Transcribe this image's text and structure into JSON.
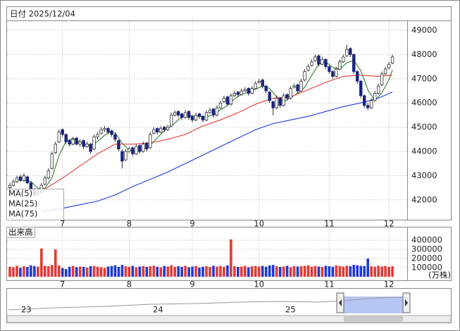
{
  "chart_data": [
    {
      "type": "candlestick",
      "title": "日付 2025/12/04",
      "ohlc": [
        [
          42500,
          42700,
          42400,
          42600
        ],
        [
          42600,
          42850,
          42550,
          42750
        ],
        [
          42750,
          43000,
          42700,
          42900
        ],
        [
          42950,
          43050,
          42750,
          42800
        ],
        [
          42800,
          43100,
          42750,
          43000
        ],
        [
          42950,
          43000,
          42650,
          42700
        ],
        [
          42700,
          42750,
          42300,
          42400
        ],
        [
          42450,
          42500,
          42100,
          42200
        ],
        [
          42200,
          42400,
          42150,
          42300
        ],
        [
          42300,
          42700,
          42250,
          42600
        ],
        [
          42650,
          43000,
          42600,
          42900
        ],
        [
          42900,
          43300,
          42850,
          43200
        ],
        [
          43300,
          44000,
          43250,
          43900
        ],
        [
          43950,
          44400,
          43900,
          44300
        ],
        [
          44400,
          44900,
          44350,
          44800
        ],
        [
          44900,
          44950,
          44600,
          44700
        ],
        [
          44700,
          44750,
          44300,
          44400
        ],
        [
          44450,
          44500,
          44200,
          44300
        ],
        [
          44300,
          44600,
          44250,
          44500
        ],
        [
          44550,
          44600,
          44250,
          44300
        ],
        [
          44300,
          44500,
          44200,
          44400
        ],
        [
          44450,
          44500,
          44100,
          44200
        ],
        [
          44200,
          44400,
          44150,
          44300
        ],
        [
          44300,
          44350,
          43900,
          44000
        ],
        [
          44100,
          44700,
          44050,
          44600
        ],
        [
          44600,
          44800,
          44500,
          44700
        ],
        [
          44750,
          45000,
          44700,
          44900
        ],
        [
          44900,
          45050,
          44800,
          44950
        ],
        [
          44950,
          45000,
          44700,
          44800
        ],
        [
          44850,
          44900,
          44600,
          44700
        ],
        [
          44700,
          44750,
          44400,
          44500
        ],
        [
          44450,
          44500,
          44000,
          44100
        ],
        [
          44000,
          44100,
          43300,
          43600
        ],
        [
          43650,
          44100,
          43600,
          44000
        ],
        [
          44000,
          44200,
          43950,
          44100
        ],
        [
          44150,
          44200,
          43800,
          43900
        ],
        [
          43900,
          44300,
          43850,
          44200
        ],
        [
          44250,
          44300,
          43900,
          44000
        ],
        [
          44000,
          44400,
          43950,
          44300
        ],
        [
          44350,
          44400,
          44000,
          44100
        ],
        [
          44150,
          44800,
          44100,
          44700
        ],
        [
          44750,
          45000,
          44700,
          44900
        ],
        [
          44950,
          45000,
          44700,
          44800
        ],
        [
          44800,
          45050,
          44750,
          44950
        ],
        [
          45000,
          45050,
          44800,
          44900
        ],
        [
          44900,
          45100,
          44850,
          45000
        ],
        [
          45050,
          45600,
          45000,
          45500
        ],
        [
          45500,
          45700,
          45450,
          45600
        ],
        [
          45650,
          45700,
          45400,
          45500
        ],
        [
          45550,
          45600,
          45300,
          45400
        ],
        [
          45400,
          45700,
          45350,
          45600
        ],
        [
          45650,
          45700,
          45300,
          45400
        ],
        [
          45450,
          45500,
          45200,
          45300
        ],
        [
          45300,
          45600,
          45250,
          45500
        ],
        [
          45550,
          45600,
          45350,
          45450
        ],
        [
          45450,
          45500,
          45200,
          45300
        ],
        [
          45300,
          45700,
          45250,
          45600
        ],
        [
          45600,
          45800,
          45550,
          45700
        ],
        [
          45750,
          45800,
          45400,
          45500
        ],
        [
          45500,
          45900,
          45450,
          45800
        ],
        [
          45800,
          46100,
          45750,
          46000
        ],
        [
          46050,
          46300,
          46000,
          46200
        ],
        [
          46250,
          46300,
          45900,
          45950
        ],
        [
          45950,
          46400,
          45900,
          46300
        ],
        [
          46300,
          46500,
          46250,
          46400
        ],
        [
          46450,
          46500,
          46250,
          46350
        ],
        [
          46350,
          46600,
          46300,
          46500
        ],
        [
          46500,
          46650,
          46450,
          46550
        ],
        [
          46600,
          46650,
          46300,
          46400
        ],
        [
          46400,
          46700,
          46350,
          46600
        ],
        [
          46600,
          46900,
          46550,
          46800
        ],
        [
          46850,
          47000,
          46800,
          46900
        ],
        [
          46950,
          47000,
          46600,
          46700
        ],
        [
          46700,
          46750,
          46400,
          46500
        ],
        [
          46450,
          46500,
          46000,
          46100
        ],
        [
          46050,
          46100,
          45500,
          45800
        ],
        [
          45800,
          46300,
          45750,
          46200
        ],
        [
          46200,
          46250,
          45800,
          45900
        ],
        [
          45900,
          46400,
          45850,
          46300
        ],
        [
          46350,
          46400,
          46100,
          46200
        ],
        [
          46200,
          46700,
          46150,
          46600
        ],
        [
          46650,
          46800,
          46600,
          46700
        ],
        [
          46750,
          46800,
          46400,
          46500
        ],
        [
          46500,
          47000,
          46450,
          46900
        ],
        [
          46950,
          47400,
          46900,
          47300
        ],
        [
          47350,
          47600,
          47300,
          47500
        ],
        [
          47550,
          47800,
          47500,
          47700
        ],
        [
          47750,
          48000,
          47700,
          47900
        ],
        [
          47950,
          48000,
          47500,
          47600
        ],
        [
          47600,
          47900,
          47550,
          47800
        ],
        [
          47800,
          47850,
          47400,
          47500
        ],
        [
          47500,
          47550,
          47200,
          47300
        ],
        [
          47300,
          47350,
          47000,
          47100
        ],
        [
          47100,
          47500,
          47050,
          47400
        ],
        [
          47400,
          47800,
          47350,
          47700
        ],
        [
          47700,
          48000,
          47650,
          47900
        ],
        [
          47950,
          48400,
          47900,
          48200
        ],
        [
          48250,
          48300,
          47900,
          48000
        ],
        [
          48000,
          48050,
          47200,
          47300
        ],
        [
          47300,
          47350,
          46800,
          46900
        ],
        [
          46900,
          46950,
          46200,
          46300
        ],
        [
          46300,
          46350,
          45800,
          45900
        ],
        [
          45900,
          46000,
          45700,
          45800
        ],
        [
          45800,
          46200,
          45750,
          46100
        ],
        [
          46100,
          46500,
          46050,
          46400
        ],
        [
          46400,
          46800,
          46350,
          46700
        ],
        [
          46750,
          47300,
          46700,
          47200
        ],
        [
          47200,
          47500,
          47150,
          47400
        ],
        [
          47450,
          47700,
          47400,
          47600
        ],
        [
          47650,
          48000,
          47600,
          47900
        ]
      ],
      "up_color": "#ffffff",
      "down_color": "#1a237e",
      "series": [
        {
          "name": "MA(5)",
          "color": "#2e7d32",
          "x": [
            4,
            6,
            8,
            10,
            12,
            14,
            16,
            18,
            20,
            22,
            24,
            26,
            28,
            30,
            32,
            34,
            36,
            38,
            40,
            42,
            44,
            46,
            48,
            50,
            52,
            54,
            56,
            58,
            60,
            62,
            64,
            66,
            68,
            70,
            72,
            74,
            76,
            78,
            80,
            82,
            84,
            86,
            88,
            90,
            92,
            94,
            96,
            98,
            100,
            102,
            104,
            106,
            108,
            109
          ],
          "values": [
            42810,
            42760,
            42480,
            42480,
            42920,
            43820,
            44420,
            44540,
            44400,
            44280,
            44300,
            44540,
            44790,
            44770,
            44340,
            44060,
            43960,
            44080,
            44260,
            44560,
            44850,
            45050,
            45300,
            45520,
            45460,
            45450,
            45430,
            45510,
            45720,
            45890,
            46170,
            46360,
            46440,
            46570,
            46700,
            46600,
            46260,
            46060,
            46220,
            46400,
            46640,
            47140,
            47600,
            47700,
            47460,
            47400,
            47660,
            47760,
            47340,
            46540,
            46100,
            46420,
            46960,
            47360
          ]
        },
        {
          "name": "MA(25)",
          "color": "#e53935",
          "x": [
            9,
            15,
            20,
            25,
            30,
            35,
            40,
            45,
            50,
            55,
            60,
            65,
            70,
            75,
            80,
            85,
            90,
            95,
            100,
            105,
            109
          ],
          "values": [
            42350,
            42900,
            43400,
            43900,
            44300,
            44300,
            44350,
            44500,
            44700,
            45050,
            45300,
            45600,
            45950,
            46200,
            46250,
            46550,
            46850,
            47100,
            47150,
            47100,
            47150
          ]
        },
        {
          "name": "MA(75)",
          "color": "#1e3ad6",
          "x": [
            9,
            15,
            20,
            25,
            30,
            35,
            40,
            45,
            50,
            55,
            60,
            65,
            70,
            75,
            80,
            85,
            90,
            95,
            100,
            105,
            109
          ],
          "values": [
            41500,
            41650,
            41800,
            41950,
            42200,
            42550,
            42850,
            43150,
            43500,
            43850,
            44200,
            44550,
            44900,
            45150,
            45300,
            45450,
            45650,
            45850,
            46000,
            46200,
            46450
          ]
        }
      ],
      "xlim": [
        -0.8,
        113.2
      ],
      "xticks": [
        {
          "value": 15,
          "label": "7"
        },
        {
          "value": 34,
          "label": "8"
        },
        {
          "value": 52,
          "label": "9"
        },
        {
          "value": 71,
          "label": "10"
        },
        {
          "value": 91,
          "label": "11"
        },
        {
          "value": 108,
          "label": "12"
        }
      ],
      "ylim": [
        41180,
        49380
      ],
      "yticks": [
        42000,
        43000,
        44000,
        45000,
        46000,
        47000,
        48000,
        49000
      ],
      "grid": true
    },
    {
      "type": "bar",
      "title": "出来高",
      "unit": "(万株)",
      "values": [
        110000,
        105000,
        120000,
        98000,
        115000,
        108000,
        125000,
        118000,
        112000,
        310000,
        120000,
        115000,
        130000,
        300000,
        122000,
        95000,
        85000,
        110000,
        118000,
        105000,
        112000,
        108000,
        100000,
        115000,
        120000,
        110000,
        105000,
        98000,
        112000,
        118000,
        125000,
        108000,
        130000,
        115000,
        110000,
        120000,
        105000,
        112000,
        118000,
        108000,
        115000,
        120000,
        110000,
        105000,
        118000,
        112000,
        125000,
        108000,
        115000,
        110000,
        120000,
        105000,
        112000,
        118000,
        100000,
        110000,
        115000,
        108000,
        120000,
        112000,
        118000,
        110000,
        125000,
        410000,
        115000,
        108000,
        112000,
        120000,
        105000,
        115000,
        118000,
        112000,
        120000,
        110000,
        125000,
        130000,
        115000,
        108000,
        112000,
        120000,
        105000,
        118000,
        112000,
        115000,
        120000,
        125000,
        110000,
        118000,
        112000,
        108000,
        120000,
        115000,
        110000,
        125000,
        118000,
        112000,
        120000,
        115000,
        130000,
        125000,
        120000,
        118000,
        200000,
        115000,
        110000,
        120000,
        112000,
        118000,
        108000,
        115000
      ],
      "up_color": "#e53935",
      "down_color": "#1e3ad6",
      "ylim": [
        0,
        540000
      ],
      "yticks": [
        100000,
        200000,
        300000,
        400000
      ],
      "grid": true
    }
  ],
  "navigator": {
    "labels": [
      "23",
      "24",
      "25"
    ]
  }
}
